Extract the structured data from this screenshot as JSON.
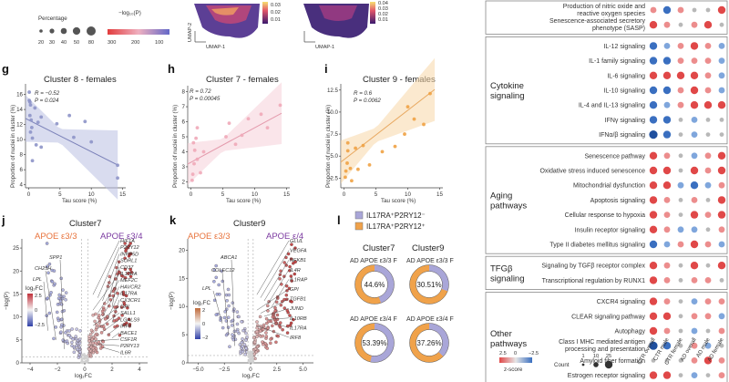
{
  "top_legend": {
    "pct_title": "Percentage",
    "pct_values": [
      "20",
      "30",
      "40",
      "50",
      "80"
    ],
    "logp_title": "−log₁₀(P)",
    "logp_ticks": [
      "300",
      "200",
      "100"
    ],
    "umap_x": "UMAP-1",
    "umap_y": "UMAP-2",
    "umap_ticks": [
      "0.03",
      "0.02",
      "0.01"
    ],
    "umap_ticks2": [
      "0.04",
      "0.03",
      "0.02",
      "0.01"
    ]
  },
  "panels": {
    "g": {
      "label": "g",
      "title": "Cluster 8 - females",
      "stat_r": "R = −0.52",
      "stat_p": "P = 0.024"
    },
    "h": {
      "label": "h",
      "title": "Cluster 7 - females",
      "stat_r": "R = 0.72",
      "stat_p": "P = 0.00045"
    },
    "i": {
      "label": "i",
      "title": "Cluster 9 - females",
      "stat_r": "R = 0.6",
      "stat_p": "P = 0.0062"
    },
    "j": {
      "label": "j",
      "title": "Cluster7",
      "left_group": "APOE ε3/3",
      "right_group": "APOE ε3/4"
    },
    "k": {
      "label": "k",
      "title": "Cluster9",
      "left_group": "APOE ε3/3",
      "right_group": "APOE ε/4"
    },
    "l": {
      "label": "l"
    }
  },
  "scatter_axes": {
    "ylabel": "Proportion of nuclei in cluster (%)",
    "xlabel": "Tau score (%)",
    "x_ticks": [
      "0",
      "5",
      "10",
      "15"
    ],
    "g_yticks": [
      "16",
      "14",
      "12",
      "10",
      "8",
      "6",
      "4"
    ],
    "h_yticks": [
      "8",
      "7",
      "6",
      "5",
      "4",
      "3",
      "2"
    ],
    "i_yticks": [
      "12.5",
      "10.0",
      "7.5",
      "5.0",
      "2.5"
    ]
  },
  "volcano_axes": {
    "ylabel": "−log(P)",
    "xlabel": "log₂FC",
    "legend_title": "log₂FC",
    "j_yticks": [
      "25",
      "20",
      "15",
      "10",
      "5",
      "0"
    ],
    "j_xticks": [
      "−4",
      "−2",
      "0",
      "2",
      "4"
    ],
    "j_legend_ticks": [
      "2.5",
      "0",
      "−2.5"
    ],
    "k_yticks": [
      "20",
      "15",
      "10",
      "5",
      "0"
    ],
    "k_xticks": [
      "−5.0",
      "−2.5",
      "0",
      "2.5",
      "5.0"
    ],
    "k_legend_ticks": [
      "2",
      "0",
      "−2"
    ]
  },
  "volcano_genes": {
    "j_left": [
      "SPP1",
      "CH25H",
      "LPL"
    ],
    "j_right": [
      "HIF1A",
      "P2RY12",
      "INPP5D",
      "SORL1",
      "CD37",
      "IL10RA",
      "MEF2C",
      "HAVCR2",
      "IL17RA",
      "CX3CR1",
      "GPI",
      "SALL1",
      "LGALS9",
      "IRF8",
      "BACE1",
      "CSF1R",
      "P2RY13",
      "IL6R"
    ],
    "k_left": [
      "ABCA1",
      "COLEC12",
      "LPL"
    ],
    "k_right": [
      "GLUL",
      "VEGFA",
      "NFKB1",
      "IL4R",
      "IL1RAP",
      "GPI",
      "TGFB1",
      "JUND",
      "IL10RB",
      "IL17RA",
      "IRF8"
    ]
  },
  "donuts": {
    "legend": [
      "IL17RA⁺P2RY12⁻",
      "IL17RA⁺P2RY12⁺"
    ],
    "col_titles": [
      "Cluster7",
      "Cluster9"
    ],
    "row_labels": [
      "AD APOE ε3/3 F",
      "AD APOE ε3/4 F"
    ],
    "values": [
      "44.6%",
      "30.51%",
      "53.39%",
      "37.26%"
    ],
    "fractions": [
      0.446,
      0.3051,
      0.5339,
      0.3726
    ],
    "colors": {
      "purple": "#a9a6d8",
      "orange": "#f0a24a"
    }
  },
  "pathway_panel": {
    "groups": [
      {
        "name_lines": [],
        "rows": [
          {
            "label": [
              "Production of nitric oxide and",
              "reactive oxygen species"
            ],
            "values": [
              "rl",
              "b",
              "rl",
              "g",
              "g",
              "r"
            ]
          },
          {
            "label": [
              "Senescence-associated secretory",
              "phenotype (SASP)"
            ],
            "values": [
              "r",
              "rl",
              "g",
              "rl",
              "r",
              "g"
            ]
          }
        ]
      },
      {
        "name_lines": [
          "Cytokine",
          "signaling"
        ],
        "rows": [
          {
            "label": [
              "IL-12 signaling"
            ],
            "values": [
              "b",
              "bl",
              "rl",
              "r",
              "rl",
              "bl"
            ]
          },
          {
            "label": [
              "IL-1 family signaling"
            ],
            "values": [
              "b",
              "b",
              "rl",
              "rl",
              "rl",
              "bl"
            ]
          },
          {
            "label": [
              "IL-6 signaling"
            ],
            "values": [
              "r",
              "r",
              "r",
              "r",
              "rl",
              "bl"
            ]
          },
          {
            "label": [
              "IL-10 signaling"
            ],
            "values": [
              "b",
              "b",
              "rl",
              "r",
              "rl",
              "bl"
            ]
          },
          {
            "label": [
              "IL-4 and IL-13 signaling"
            ],
            "values": [
              "b",
              "bl",
              "rl",
              "r",
              "r",
              "r"
            ]
          },
          {
            "label": [
              "IFNγ signaling"
            ],
            "values": [
              "b",
              "b",
              "g",
              "bl",
              "g",
              "g"
            ]
          },
          {
            "label": [
              "IFNα/β signaling"
            ],
            "values": [
              "bd",
              "b",
              "g",
              "bl",
              "g",
              "g"
            ]
          }
        ]
      },
      {
        "name_lines": [
          "Aging",
          "pathways"
        ],
        "rows": [
          {
            "label": [
              "Senescence pathway"
            ],
            "values": [
              "r",
              "rl",
              "g",
              "bl",
              "rl",
              "r"
            ]
          },
          {
            "label": [
              "Oxidative stress induced senescence"
            ],
            "values": [
              "r",
              "r",
              "g",
              "r",
              "rl",
              "r"
            ]
          },
          {
            "label": [
              "Mitochondrial dysfunction"
            ],
            "values": [
              "r",
              "r",
              "bl",
              "b",
              "bl",
              "rl"
            ]
          },
          {
            "label": [
              "Apoptosis signaling"
            ],
            "values": [
              "r",
              "rl",
              "g",
              "rl",
              "g",
              "r"
            ]
          },
          {
            "label": [
              "Cellular response to hypoxia"
            ],
            "values": [
              "r",
              "rl",
              "g",
              "r",
              "rl",
              "r"
            ]
          },
          {
            "label": [
              "Insulin receptor signaling"
            ],
            "values": [
              "r",
              "rl",
              "bl",
              "bl",
              "g",
              "rl"
            ]
          },
          {
            "label": [
              "Type II diabetes mellitus signaling"
            ],
            "values": [
              "b",
              "bl",
              "rl",
              "r",
              "rl",
              "bl"
            ]
          }
        ]
      },
      {
        "name_lines": [
          "TFGβ",
          "signaling"
        ],
        "rows": [
          {
            "label": [
              "Signaling by TGFβ receptor complex"
            ],
            "values": [
              "r",
              "rl",
              "g",
              "r",
              "g",
              "r"
            ]
          },
          {
            "label": [
              "Transcriptional regulation by RUNX1"
            ],
            "values": [
              "r",
              "rl",
              "g",
              "rl",
              "rl",
              "g"
            ]
          }
        ]
      },
      {
        "name_lines": [
          "Other",
          "pathways"
        ],
        "rows": [
          {
            "label": [
              "CXCR4 signaling"
            ],
            "values": [
              "r",
              "rl",
              "g",
              "bl",
              "rl",
              "rl"
            ]
          },
          {
            "label": [
              "CLEAR signaling pathway"
            ],
            "values": [
              "r",
              "r",
              "g",
              "rl",
              "rl",
              "bl"
            ]
          },
          {
            "label": [
              "Autophagy"
            ],
            "values": [
              "r",
              "rl",
              "g",
              "bl",
              "g",
              "rl"
            ]
          },
          {
            "label": [
              "Class I MHC mediated antigen",
              "processing and presentation"
            ],
            "values": [
              "bd",
              "b",
              "g",
              "rl",
              "bl",
              "g"
            ]
          },
          {
            "label": [
              "Amyloid fiber formation"
            ],
            "values": [
              "g",
              "g",
              "g",
              "rl",
              "r",
              "rl"
            ]
          },
          {
            "label": [
              "Estrogen receptor signaling"
            ],
            "values": [
              "r",
              "r",
              "g",
              "bl",
              "g",
              "rl"
            ]
          }
        ]
      }
    ],
    "columns": [
      "CTR overall",
      "CTR male",
      "CTR female",
      "AD overall",
      "AD male",
      "AD female"
    ],
    "zscore_ticks": [
      "2.5",
      "0",
      "−2.5"
    ],
    "zscore_label": "z-score",
    "count_ticks": [
      "1",
      "10",
      "25"
    ],
    "count_label": "Count"
  }
}
